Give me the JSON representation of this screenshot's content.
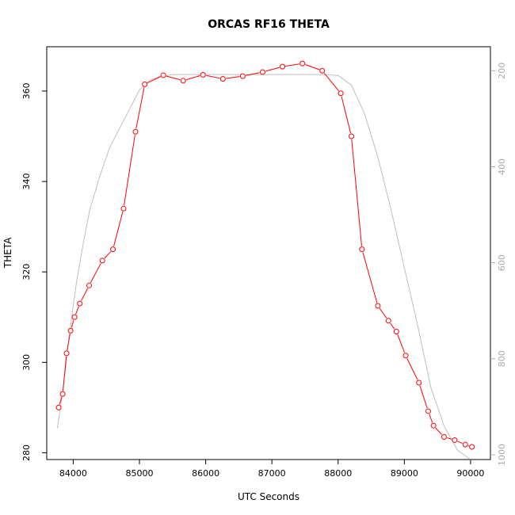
{
  "chart_data": {
    "type": "line",
    "title": "ORCAS RF16 THETA",
    "xlabel": "UTC Seconds",
    "ylabel": "THETA",
    "xlim": [
      83600,
      90300
    ],
    "ylim": [
      278.5,
      369.8
    ],
    "y2lim": [
      1010,
      150
    ],
    "x_ticks": [
      84000,
      85000,
      86000,
      87000,
      88000,
      89000,
      90000
    ],
    "y_ticks": [
      280,
      300,
      320,
      340,
      360
    ],
    "y2_ticks": [
      200,
      400,
      600,
      800,
      1000
    ],
    "grid": false,
    "legend": "none",
    "colors": {
      "theta": "#ff0000",
      "secondary": "#bebebe"
    },
    "series": [
      {
        "axis": "left",
        "marker": "open-circle",
        "x": [
          83780,
          83840,
          83900,
          83960,
          84020,
          84100,
          84240,
          84440,
          84600,
          84760,
          84940,
          85080,
          85360,
          85660,
          85960,
          86260,
          86560,
          86860,
          87160,
          87460,
          87760,
          88040,
          88200,
          88360,
          88600,
          88760,
          88880,
          89020,
          89220,
          89360,
          89440,
          89600,
          89760,
          89920,
          90020
        ],
        "y": [
          290,
          293,
          302,
          307,
          310,
          313,
          317,
          322.5,
          325,
          334,
          351,
          361.5,
          363.5,
          362.3,
          363.6,
          362.7,
          363.3,
          364.2,
          365.4,
          366.1,
          364.5,
          359.5,
          350,
          325,
          312.5,
          309.2,
          306.8,
          301.5,
          295.5,
          289.2,
          286,
          283.5,
          282.8,
          281.8,
          281.3
        ]
      },
      {
        "axis": "right",
        "marker": "none",
        "x": [
          83760,
          83850,
          83950,
          84050,
          84150,
          84250,
          84400,
          84550,
          84700,
          84850,
          85000,
          85150,
          85300,
          85500,
          86000,
          86500,
          87000,
          87500,
          87800,
          88000,
          88200,
          88400,
          88600,
          88800,
          89000,
          89200,
          89400,
          89600,
          89800,
          90000
        ],
        "y": [
          945,
          860,
          740,
          640,
          560,
          490,
          420,
          360,
          320,
          280,
          240,
          220,
          212,
          208,
          208,
          208,
          208,
          208,
          208,
          210,
          230,
          290,
          380,
          490,
          610,
          730,
          860,
          940,
          990,
          1010
        ]
      }
    ]
  }
}
